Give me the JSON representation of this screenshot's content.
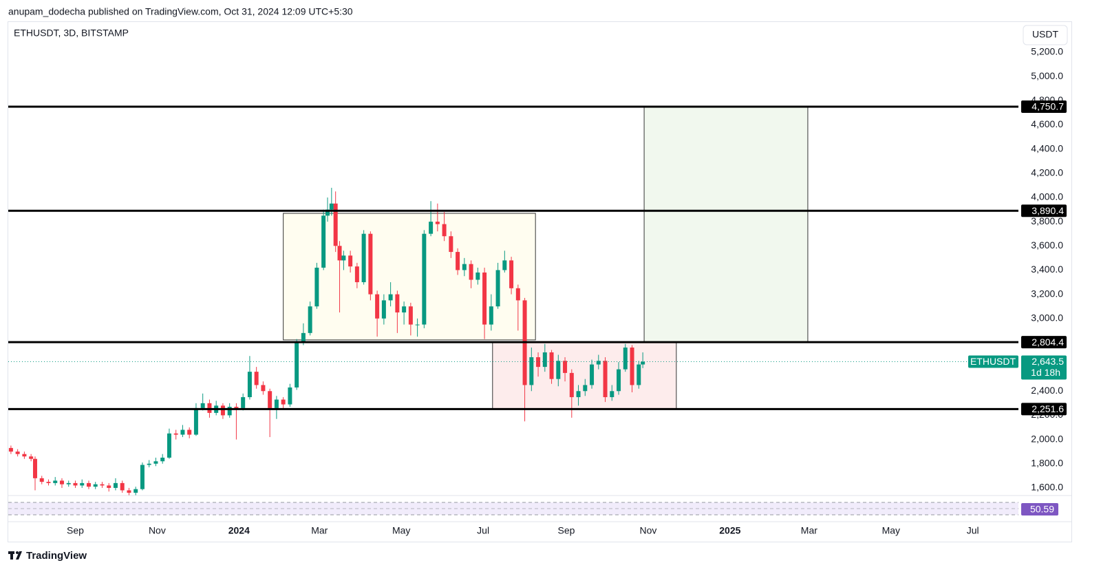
{
  "header": "anupam_dodecha published on TradingView.com, Oct 31, 2024 12:09 UTC+5:30",
  "footer": "TradingView",
  "chart_data": {
    "type": "candlestick",
    "title": "ETHUSDT, 3D, BITSTAMP",
    "currency": "USDT",
    "up_color": "#089981",
    "down_color": "#f23645",
    "xlim": [
      -50,
      703
    ],
    "ylim": [
      1537,
      5450
    ],
    "xticks": [
      {
        "value": 0,
        "label": "Sep"
      },
      {
        "value": 61,
        "label": "Nov"
      },
      {
        "value": 122,
        "label": "2024"
      },
      {
        "value": 182,
        "label": "Mar"
      },
      {
        "value": 243,
        "label": "May"
      },
      {
        "value": 304,
        "label": "Jul"
      },
      {
        "value": 366,
        "label": "Sep"
      },
      {
        "value": 427,
        "label": "Nov"
      },
      {
        "value": 488,
        "label": "2025"
      },
      {
        "value": 547,
        "label": "Mar"
      },
      {
        "value": 608,
        "label": "May"
      },
      {
        "value": 669,
        "label": "Jul"
      }
    ],
    "yticks": [
      {
        "value": 1600,
        "label": "1,600.0"
      },
      {
        "value": 1800,
        "label": "1,800.0"
      },
      {
        "value": 2000,
        "label": "2,000.0"
      },
      {
        "value": 2200,
        "label": "2,200.0"
      },
      {
        "value": 2400,
        "label": "2,400.0"
      },
      {
        "value": 3000,
        "label": "3,000.0"
      },
      {
        "value": 3200,
        "label": "3,200.0"
      },
      {
        "value": 3400,
        "label": "3,400.0"
      },
      {
        "value": 3600,
        "label": "3,600.0"
      },
      {
        "value": 3800,
        "label": "3,800.0"
      },
      {
        "value": 4000,
        "label": "4,000.0"
      },
      {
        "value": 4200,
        "label": "4,200.0"
      },
      {
        "value": 4400,
        "label": "4,400.0"
      },
      {
        "value": 4600,
        "label": "4,600.0"
      },
      {
        "value": 4800,
        "label": "4,800.0"
      },
      {
        "value": 5000,
        "label": "5,000.0"
      },
      {
        "value": 5200,
        "label": "5,200.0"
      }
    ],
    "x": [
      -48,
      -43,
      -38,
      -33,
      -30,
      -25,
      -20,
      -15,
      -10,
      -5,
      0,
      5,
      10,
      15,
      20,
      25,
      30,
      35,
      40,
      45,
      50,
      55,
      60,
      65,
      70,
      75,
      80,
      85,
      90,
      95,
      100,
      105,
      110,
      115,
      120,
      125,
      130,
      135,
      140,
      145,
      150,
      155,
      160,
      165,
      170,
      175,
      180,
      185,
      188,
      191,
      194,
      197,
      200,
      205,
      210,
      215,
      220,
      225,
      230,
      235,
      240,
      245,
      250,
      255,
      260,
      265,
      270,
      275,
      280,
      285,
      290,
      295,
      300,
      305,
      310,
      315,
      320,
      325,
      330,
      335,
      340,
      345,
      350,
      355,
      360,
      365,
      370,
      375,
      380,
      385,
      390,
      395,
      400,
      405,
      410,
      415,
      420,
      423
    ],
    "open": [
      1930,
      1900,
      1880,
      1860,
      1840,
      1680,
      1650,
      1640,
      1660,
      1630,
      1640,
      1620,
      1640,
      1610,
      1630,
      1620,
      1600,
      1640,
      1580,
      1560,
      1590,
      1790,
      1800,
      1820,
      1850,
      2050,
      2040,
      2080,
      2040,
      2260,
      2300,
      2220,
      2280,
      2200,
      2270,
      2260,
      2350,
      2560,
      2450,
      2400,
      2260,
      2330,
      2290,
      2430,
      2800,
      2880,
      3100,
      3420,
      3850,
      3900,
      3950,
      3600,
      3480,
      3520,
      3430,
      3300,
      3700,
      3200,
      3000,
      3150,
      3200,
      3050,
      3100,
      2950,
      2950,
      3700,
      3800,
      3780,
      3680,
      3550,
      3400,
      3450,
      3320,
      3380,
      2950,
      3100,
      3400,
      3480,
      3250,
      3150,
      2450,
      2680,
      2600,
      2720,
      2500,
      2650,
      2550,
      2350,
      2400,
      2450,
      2620,
      2650,
      2350,
      2400,
      2580,
      2760,
      2450,
      2620
    ],
    "high": [
      1950,
      1920,
      1900,
      1880,
      1860,
      1700,
      1670,
      1690,
      1680,
      1660,
      1660,
      1670,
      1660,
      1650,
      1650,
      1640,
      1680,
      1660,
      1600,
      1610,
      1810,
      1830,
      1850,
      1880,
      2090,
      2080,
      2120,
      2100,
      2300,
      2380,
      2330,
      2320,
      2300,
      2300,
      2300,
      2380,
      2690,
      2600,
      2480,
      2420,
      2360,
      2350,
      2460,
      2830,
      2960,
      3140,
      3460,
      3900,
      4000,
      4080,
      4050,
      3640,
      3560,
      3560,
      3460,
      3730,
      3720,
      3230,
      3200,
      3300,
      3230,
      3140,
      3130,
      3000,
      3730,
      3970,
      3950,
      3880,
      3720,
      3580,
      3500,
      3480,
      3420,
      3420,
      3200,
      3460,
      3560,
      3510,
      3280,
      3170,
      2760,
      2720,
      2790,
      2740,
      2700,
      2680,
      2580,
      2450,
      2500,
      2660,
      2700,
      2680,
      2450,
      2640,
      2790,
      2780,
      2650,
      2720
    ],
    "low": [
      1880,
      1860,
      1840,
      1820,
      1580,
      1630,
      1620,
      1620,
      1600,
      1610,
      1600,
      1600,
      1590,
      1590,
      1600,
      1570,
      1580,
      1560,
      1540,
      1540,
      1580,
      1770,
      1780,
      1800,
      1840,
      2000,
      2020,
      2010,
      2030,
      2240,
      2180,
      2200,
      2170,
      2180,
      2000,
      2240,
      2330,
      2420,
      2370,
      2020,
      2170,
      2250,
      2270,
      2410,
      2780,
      2860,
      3080,
      3400,
      3800,
      3850,
      3550,
      3050,
      3400,
      3380,
      3250,
      3280,
      3150,
      2850,
      2950,
      3100,
      2880,
      2950,
      2860,
      2850,
      2920,
      3680,
      3720,
      3640,
      3500,
      3360,
      3350,
      3250,
      3280,
      2830,
      2900,
      3080,
      3380,
      3200,
      2900,
      2150,
      2400,
      2520,
      2560,
      2460,
      2440,
      2480,
      2180,
      2280,
      2360,
      2420,
      2580,
      2310,
      2320,
      2370,
      2560,
      2390,
      2420,
      2590
    ],
    "close": [
      1900,
      1880,
      1860,
      1840,
      1680,
      1650,
      1640,
      1660,
      1630,
      1640,
      1620,
      1640,
      1610,
      1630,
      1620,
      1600,
      1640,
      1580,
      1560,
      1590,
      1790,
      1800,
      1820,
      1850,
      2050,
      2040,
      2080,
      2040,
      2260,
      2300,
      2220,
      2280,
      2200,
      2270,
      2260,
      2350,
      2560,
      2450,
      2400,
      2260,
      2330,
      2290,
      2430,
      2800,
      2880,
      3100,
      3420,
      3850,
      3900,
      3950,
      3600,
      3480,
      3520,
      3430,
      3300,
      3700,
      3200,
      3000,
      3150,
      3200,
      3050,
      3100,
      2950,
      2950,
      3700,
      3800,
      3780,
      3680,
      3550,
      3400,
      3450,
      3320,
      3380,
      2950,
      3100,
      3400,
      3480,
      3250,
      3150,
      2450,
      2680,
      2600,
      2720,
      2500,
      2650,
      2550,
      2350,
      2400,
      2450,
      2620,
      2650,
      2350,
      2400,
      2580,
      2760,
      2450,
      2620,
      2643.5
    ],
    "levels": {
      "values": [
        4750.7,
        3890.4,
        2804.4,
        2251.6
      ],
      "value_labels": [
        "4,750.7",
        "3,890.4",
        "2,804.4",
        "2,251.6"
      ]
    },
    "zones": [
      {
        "x": [
          155,
          343
        ],
        "y": [
          2823,
          3869
        ],
        "color": "#fffdf0"
      },
      {
        "x": [
          311,
          448
        ],
        "y": [
          2251,
          2804
        ],
        "color": "#fdecec"
      },
      {
        "x": [
          424,
          546
        ],
        "y": [
          2804,
          4750
        ],
        "color": "#f1f8ee"
      }
    ],
    "last": {
      "name": "ETHUSDT",
      "value": 2643.5,
      "value_label": "2,643.5",
      "countdown": "1d 18h",
      "color": "#089981"
    },
    "rsi": {
      "value": 50.59,
      "value_label": "50.59",
      "color": "#7e57c2"
    }
  }
}
